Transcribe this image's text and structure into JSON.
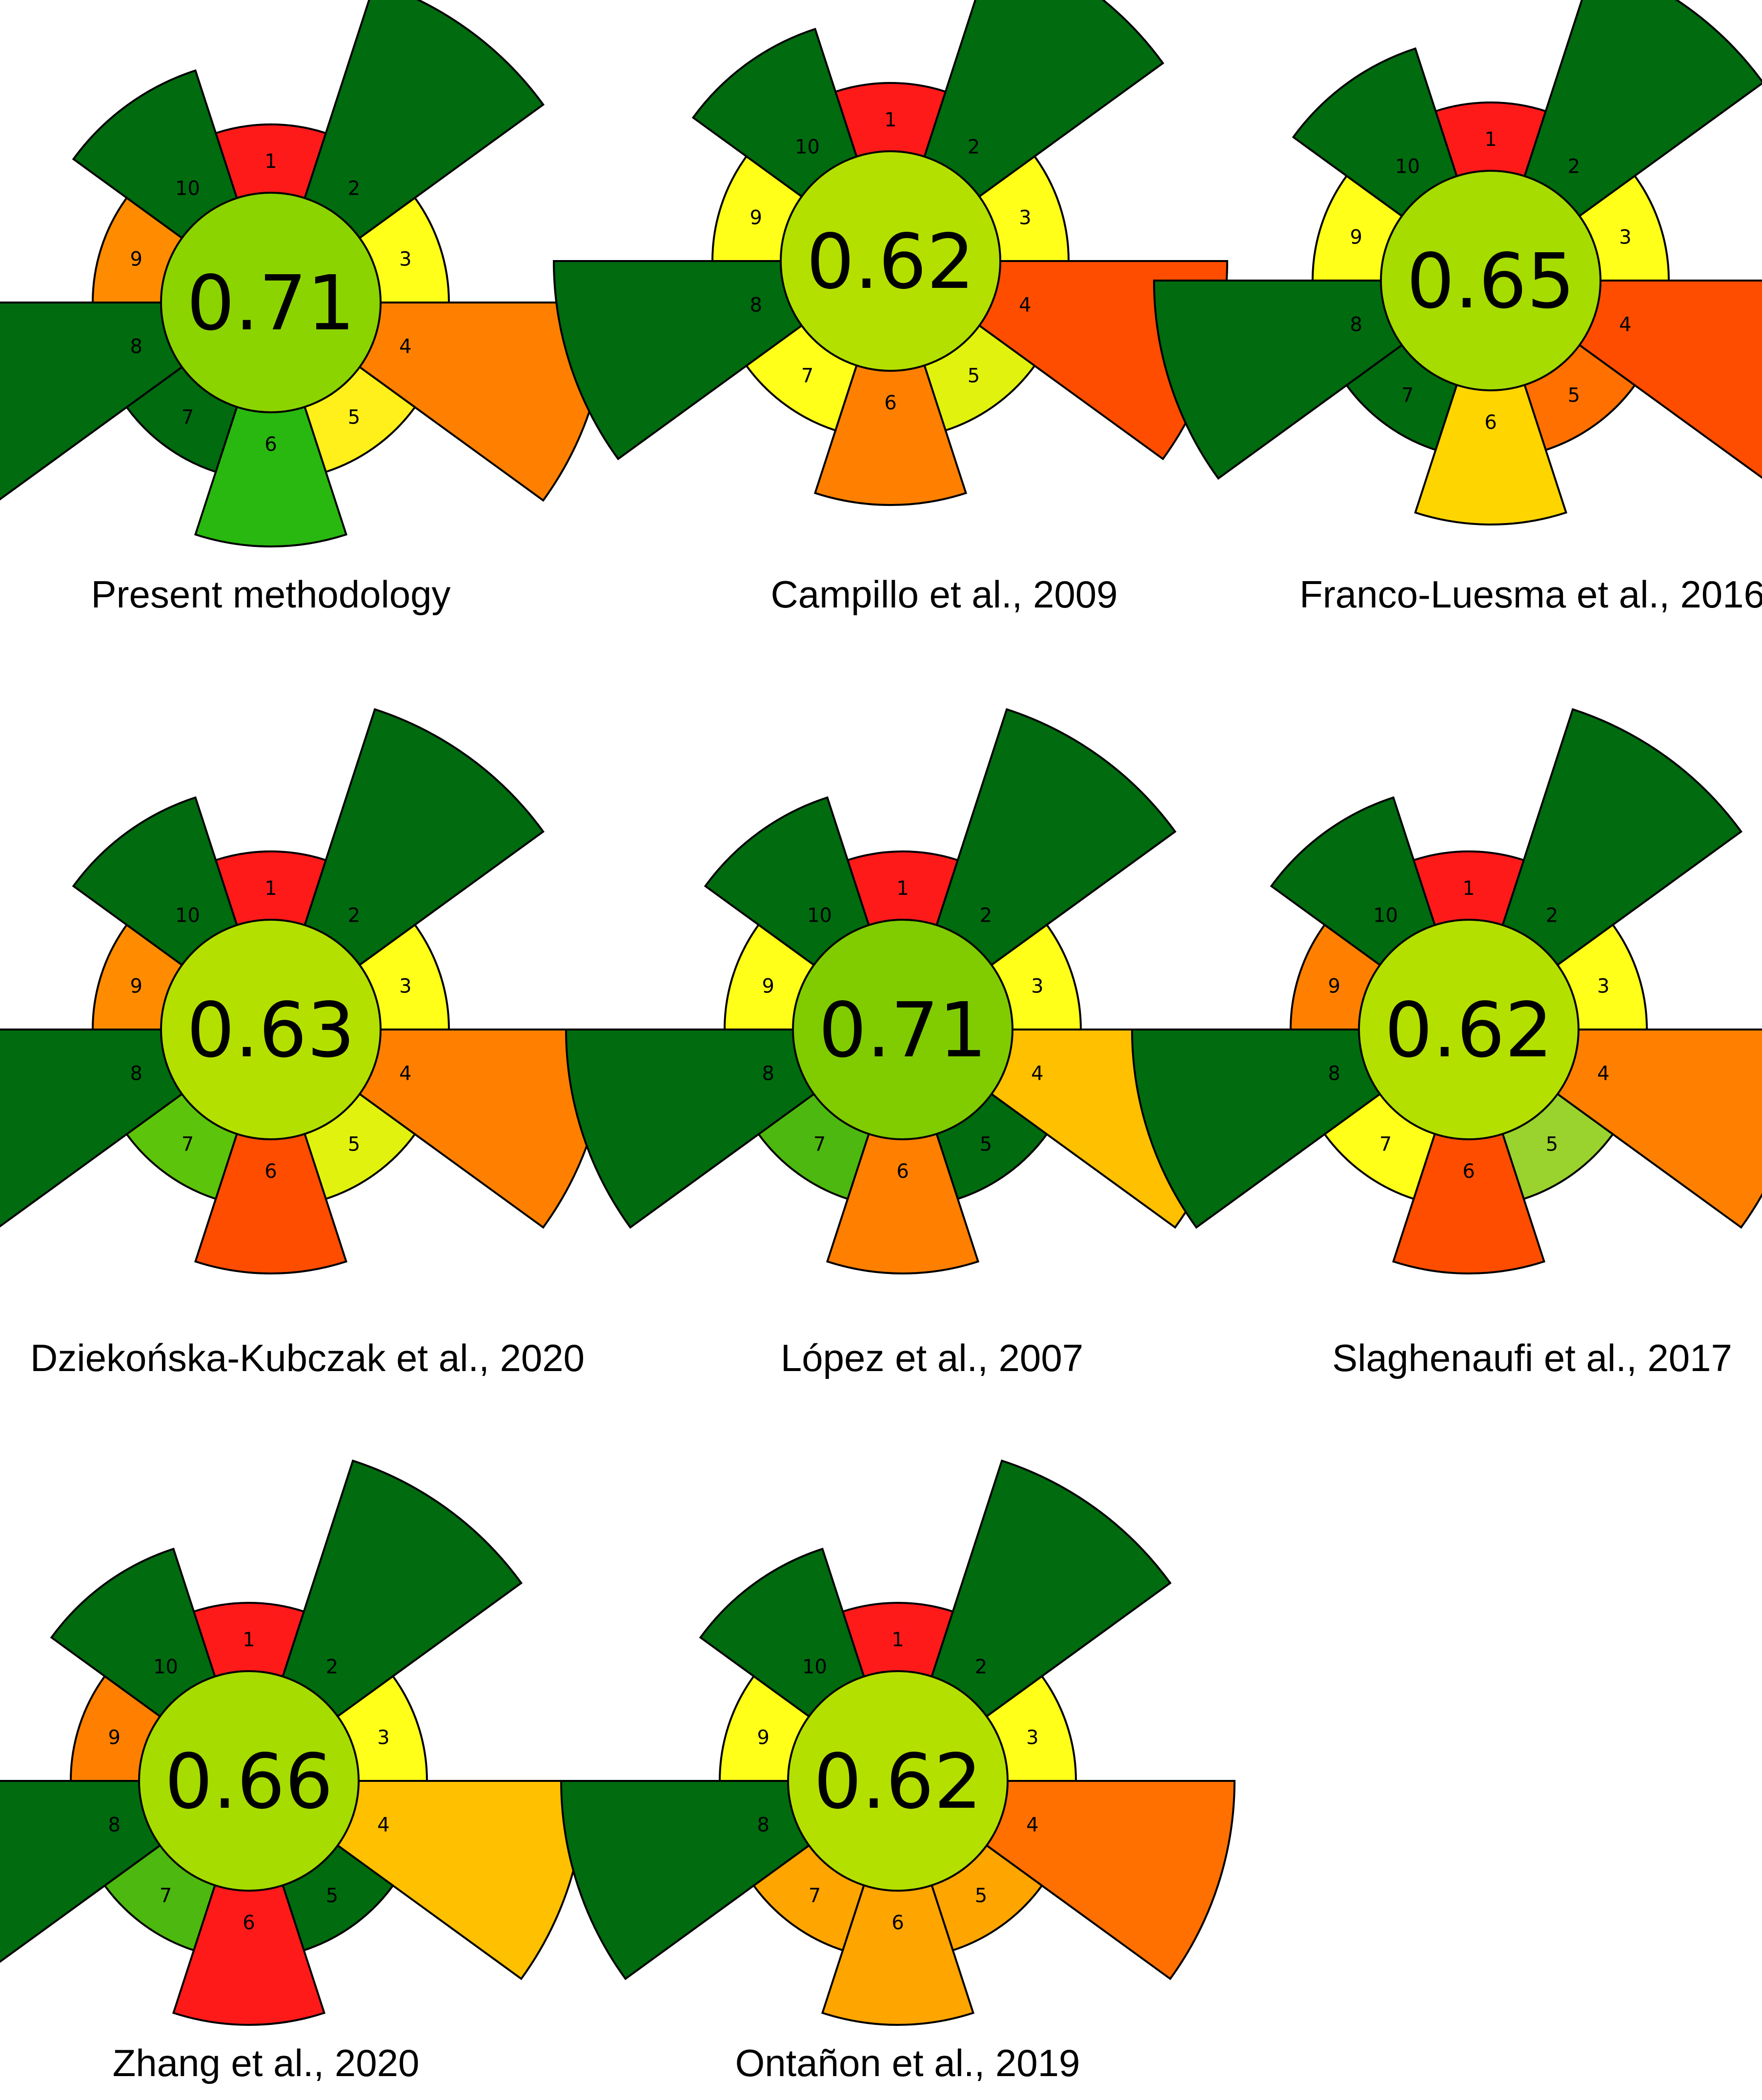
{
  "chart_data": {
    "type": "agree-pictogram",
    "description_note": "Green analytical procedure pictograms; 10 principle segments per method, centre shows overall score",
    "segment_labels": [
      "1",
      "2",
      "3",
      "4",
      "5",
      "6",
      "7",
      "8",
      "9",
      "10"
    ],
    "charts": [
      {
        "caption": "Present methodology",
        "score": "0.71",
        "center_color": "#8cd400",
        "segments": [
          {
            "label": "1",
            "color": "#ff1a1a",
            "weight": "low"
          },
          {
            "label": "2",
            "color": "#006b0f",
            "weight": "high"
          },
          {
            "label": "3",
            "color": "#ffff1a",
            "weight": "low"
          },
          {
            "label": "4",
            "color": "#ff8000",
            "weight": "high"
          },
          {
            "label": "5",
            "color": "#ffef1a",
            "weight": "low"
          },
          {
            "label": "6",
            "color": "#29b80f",
            "weight": "mid"
          },
          {
            "label": "7",
            "color": "#006b0f",
            "weight": "low"
          },
          {
            "label": "8",
            "color": "#006b0f",
            "weight": "high"
          },
          {
            "label": "9",
            "color": "#ff8c00",
            "weight": "low"
          },
          {
            "label": "10",
            "color": "#006b0f",
            "weight": "mid"
          }
        ]
      },
      {
        "caption": "Campillo et al., 2009",
        "score": "0.62",
        "center_color": "#b4e000",
        "segments": [
          {
            "label": "1",
            "color": "#ff1a1a",
            "weight": "low"
          },
          {
            "label": "2",
            "color": "#006b0f",
            "weight": "high"
          },
          {
            "label": "3",
            "color": "#ffff1a",
            "weight": "low"
          },
          {
            "label": "4",
            "color": "#ff4d00",
            "weight": "high"
          },
          {
            "label": "5",
            "color": "#e2f20f",
            "weight": "low"
          },
          {
            "label": "6",
            "color": "#ff8000",
            "weight": "mid"
          },
          {
            "label": "7",
            "color": "#ffff1a",
            "weight": "low"
          },
          {
            "label": "8",
            "color": "#006b0f",
            "weight": "high"
          },
          {
            "label": "9",
            "color": "#ffff1a",
            "weight": "low"
          },
          {
            "label": "10",
            "color": "#006b0f",
            "weight": "mid"
          }
        ]
      },
      {
        "caption": "Franco-Luesma et al., 2016",
        "score": "0.65",
        "center_color": "#a6dc00",
        "segments": [
          {
            "label": "1",
            "color": "#ff1a1a",
            "weight": "low"
          },
          {
            "label": "2",
            "color": "#006b0f",
            "weight": "high"
          },
          {
            "label": "3",
            "color": "#ffff1a",
            "weight": "low"
          },
          {
            "label": "4",
            "color": "#ff4d00",
            "weight": "high"
          },
          {
            "label": "5",
            "color": "#ff7000",
            "weight": "low"
          },
          {
            "label": "6",
            "color": "#ffd500",
            "weight": "mid"
          },
          {
            "label": "7",
            "color": "#006b0f",
            "weight": "low"
          },
          {
            "label": "8",
            "color": "#006b0f",
            "weight": "high"
          },
          {
            "label": "9",
            "color": "#ffff1a",
            "weight": "low"
          },
          {
            "label": "10",
            "color": "#006b0f",
            "weight": "mid"
          }
        ]
      },
      {
        "caption": "Dziekońska-Kubczak et al., 2020",
        "score": "0.63",
        "center_color": "#b4e000",
        "segments": [
          {
            "label": "1",
            "color": "#ff1a1a",
            "weight": "low"
          },
          {
            "label": "2",
            "color": "#006b0f",
            "weight": "high"
          },
          {
            "label": "3",
            "color": "#ffff1a",
            "weight": "low"
          },
          {
            "label": "4",
            "color": "#ff8000",
            "weight": "high"
          },
          {
            "label": "5",
            "color": "#e2f20f",
            "weight": "low"
          },
          {
            "label": "6",
            "color": "#ff4d00",
            "weight": "mid"
          },
          {
            "label": "7",
            "color": "#5cc40a",
            "weight": "low"
          },
          {
            "label": "8",
            "color": "#006b0f",
            "weight": "high"
          },
          {
            "label": "9",
            "color": "#ff8c00",
            "weight": "low"
          },
          {
            "label": "10",
            "color": "#006b0f",
            "weight": "mid"
          }
        ]
      },
      {
        "caption": "López et al., 2007",
        "score": "0.71",
        "center_color": "#80cc00",
        "segments": [
          {
            "label": "1",
            "color": "#ff1a1a",
            "weight": "low"
          },
          {
            "label": "2",
            "color": "#006b0f",
            "weight": "high"
          },
          {
            "label": "3",
            "color": "#ffff1a",
            "weight": "low"
          },
          {
            "label": "4",
            "color": "#ffc000",
            "weight": "high"
          },
          {
            "label": "5",
            "color": "#006b0f",
            "weight": "low"
          },
          {
            "label": "6",
            "color": "#ff8000",
            "weight": "mid"
          },
          {
            "label": "7",
            "color": "#4db80f",
            "weight": "low"
          },
          {
            "label": "8",
            "color": "#006b0f",
            "weight": "high"
          },
          {
            "label": "9",
            "color": "#ffff1a",
            "weight": "low"
          },
          {
            "label": "10",
            "color": "#006b0f",
            "weight": "mid"
          }
        ]
      },
      {
        "caption": "Slaghenaufi et al., 2017",
        "score": "0.62",
        "center_color": "#b4e000",
        "segments": [
          {
            "label": "1",
            "color": "#ff1a1a",
            "weight": "low"
          },
          {
            "label": "2",
            "color": "#006b0f",
            "weight": "high"
          },
          {
            "label": "3",
            "color": "#ffff1a",
            "weight": "low"
          },
          {
            "label": "4",
            "color": "#ff8000",
            "weight": "high"
          },
          {
            "label": "5",
            "color": "#9ad22e",
            "weight": "low"
          },
          {
            "label": "6",
            "color": "#ff4d00",
            "weight": "mid"
          },
          {
            "label": "7",
            "color": "#ffff1a",
            "weight": "low"
          },
          {
            "label": "8",
            "color": "#006b0f",
            "weight": "high"
          },
          {
            "label": "9",
            "color": "#ff8000",
            "weight": "low"
          },
          {
            "label": "10",
            "color": "#006b0f",
            "weight": "mid"
          }
        ]
      },
      {
        "caption": "Zhang et al., 2020",
        "score": "0.66",
        "center_color": "#a6dc00",
        "segments": [
          {
            "label": "1",
            "color": "#ff1a1a",
            "weight": "low"
          },
          {
            "label": "2",
            "color": "#006b0f",
            "weight": "high"
          },
          {
            "label": "3",
            "color": "#ffff1a",
            "weight": "low"
          },
          {
            "label": "4",
            "color": "#ffc000",
            "weight": "high"
          },
          {
            "label": "5",
            "color": "#006b0f",
            "weight": "low"
          },
          {
            "label": "6",
            "color": "#ff1a1a",
            "weight": "mid"
          },
          {
            "label": "7",
            "color": "#4db80f",
            "weight": "low"
          },
          {
            "label": "8",
            "color": "#006b0f",
            "weight": "high"
          },
          {
            "label": "9",
            "color": "#ff8000",
            "weight": "low"
          },
          {
            "label": "10",
            "color": "#006b0f",
            "weight": "mid"
          }
        ]
      },
      {
        "caption": "Ontañon et al., 2019",
        "score": "0.62",
        "center_color": "#b4e000",
        "segments": [
          {
            "label": "1",
            "color": "#ff1a1a",
            "weight": "low"
          },
          {
            "label": "2",
            "color": "#006b0f",
            "weight": "high"
          },
          {
            "label": "3",
            "color": "#ffff1a",
            "weight": "low"
          },
          {
            "label": "4",
            "color": "#ff7000",
            "weight": "high"
          },
          {
            "label": "5",
            "color": "#ffa500",
            "weight": "low"
          },
          {
            "label": "6",
            "color": "#ffa500",
            "weight": "mid"
          },
          {
            "label": "7",
            "color": "#ffa500",
            "weight": "low"
          },
          {
            "label": "8",
            "color": "#006b0f",
            "weight": "high"
          },
          {
            "label": "9",
            "color": "#ffff1a",
            "weight": "low"
          },
          {
            "label": "10",
            "color": "#006b0f",
            "weight": "mid"
          }
        ]
      }
    ]
  }
}
